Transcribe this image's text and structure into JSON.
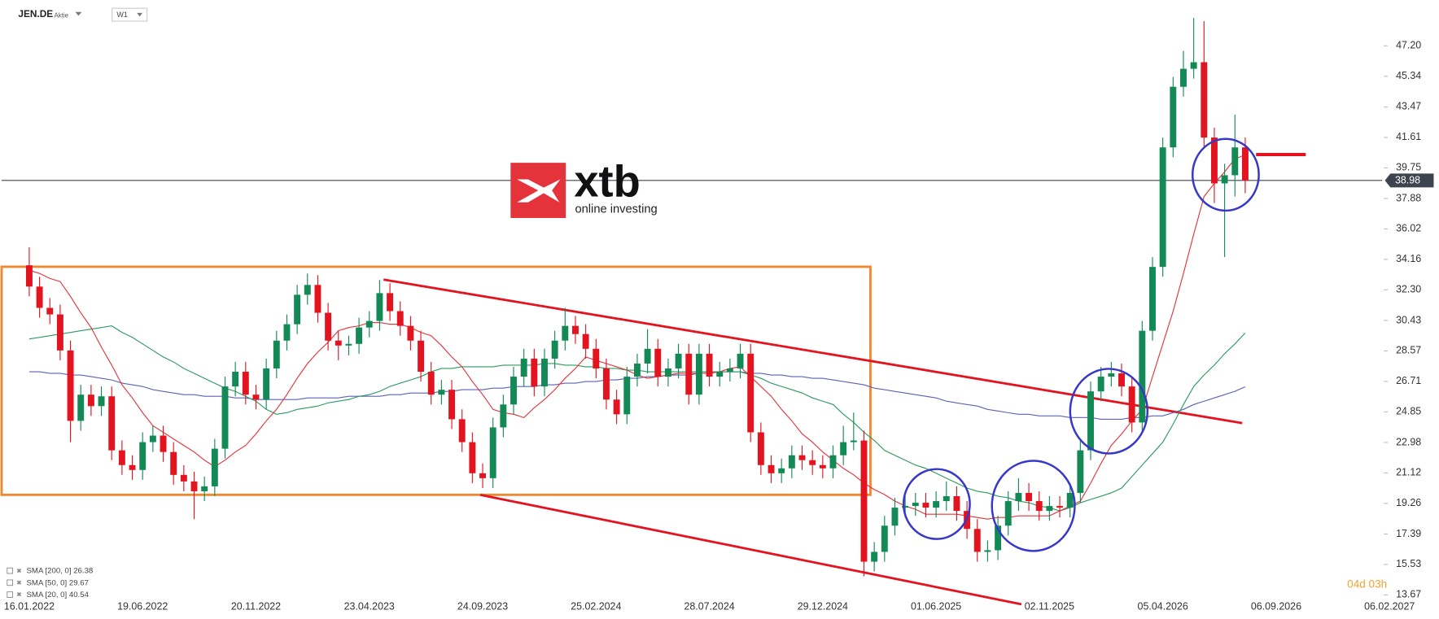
{
  "header": {
    "symbol": "JEN.DE",
    "kind": "Aktie",
    "timeframe": "W1"
  },
  "logo": {
    "brand": "xtb",
    "tagline": "online investing"
  },
  "countdown": "04d 03h",
  "chart_data": {
    "type": "candlestick",
    "categories": [
      "16.01.2022",
      null,
      null,
      null,
      null,
      null,
      null,
      null,
      null,
      null,
      null,
      "19.06.2022",
      null,
      null,
      null,
      null,
      null,
      null,
      null,
      null,
      null,
      null,
      "20.11.2022",
      null,
      null,
      null,
      null,
      null,
      null,
      null,
      null,
      null,
      null,
      "23.04.2023",
      null,
      null,
      null,
      null,
      null,
      null,
      null,
      null,
      null,
      null,
      "24.09.2023",
      null,
      null,
      null,
      null,
      null,
      null,
      null,
      null,
      null,
      null,
      "25.02.2024",
      null,
      null,
      null,
      null,
      null,
      null,
      null,
      null,
      null,
      null,
      "28.07.2024",
      null,
      null,
      null,
      null,
      null,
      null,
      null,
      null,
      null,
      null,
      "29.12.2024",
      null,
      null,
      null,
      null,
      null,
      null,
      null,
      null,
      null,
      null,
      "01.06.2025",
      null,
      null,
      null,
      null,
      null,
      null,
      null,
      null,
      null,
      null,
      "02.11.2025",
      null,
      null,
      null,
      null,
      null,
      null,
      null,
      null,
      null,
      null,
      "05.04.2026",
      null,
      null,
      null,
      null,
      null,
      null,
      null,
      null,
      null,
      null,
      "06.09.2026",
      null,
      null,
      null,
      null,
      null,
      null,
      null,
      null,
      null,
      null,
      "06.02.2027"
    ],
    "open": [
      33.8,
      32.5,
      31.2,
      30.8,
      28.6,
      24.3,
      25.9,
      25.2,
      25.8,
      22.5,
      21.6,
      21.3,
      23.0,
      23.4,
      22.4,
      21.0,
      20.6,
      20.0,
      20.3,
      22.6,
      26.4,
      27.3,
      25.9,
      25.6,
      27.5,
      29.2,
      30.2,
      32.0,
      32.6,
      30.9,
      29.2,
      28.9,
      29.0,
      30.0,
      30.4,
      32.1,
      31.0,
      30.1,
      29.2,
      27.3,
      25.9,
      26.2,
      24.4,
      23.0,
      21.1,
      20.8,
      23.9,
      25.3,
      27.0,
      28.1,
      26.4,
      28.1,
      29.2,
      30.1,
      29.6,
      28.7,
      27.5,
      25.6,
      24.7,
      27.0,
      27.8,
      28.7,
      27.0,
      27.5,
      28.4,
      25.9,
      28.4,
      27.0,
      27.3,
      27.5,
      28.4,
      23.6,
      21.6,
      21.1,
      21.4,
      22.2,
      21.9,
      21.6,
      21.4,
      22.2,
      23.0,
      23.1,
      15.7,
      16.3,
      17.9,
      19.0,
      19.1,
      19.3,
      19.0,
      19.4,
      19.7,
      18.8,
      17.7,
      16.3,
      16.4,
      17.9,
      19.4,
      19.9,
      19.4,
      18.8,
      19.1,
      19.0,
      19.9,
      22.5,
      26.1,
      27.0,
      27.2,
      26.4,
      24.2,
      29.8,
      33.7,
      41.0,
      44.7,
      45.8,
      46.2,
      41.6,
      38.8,
      39.3,
      41.0,
      null,
      null,
      null,
      null,
      null,
      null,
      null,
      null,
      null,
      null,
      null,
      null,
      null,
      null
    ],
    "high": [
      34.9,
      33.1,
      31.8,
      31.4,
      29.2,
      26.5,
      26.5,
      26.4,
      26.4,
      23.1,
      22.2,
      23.6,
      24.0,
      24.0,
      23.0,
      21.6,
      21.2,
      20.9,
      23.2,
      27.0,
      27.9,
      27.9,
      26.5,
      28.1,
      29.8,
      30.8,
      32.6,
      33.3,
      33.2,
      31.5,
      29.8,
      29.5,
      30.6,
      31.0,
      32.9,
      32.7,
      31.6,
      30.7,
      29.8,
      27.9,
      26.8,
      26.8,
      25.0,
      23.6,
      21.7,
      24.5,
      25.9,
      27.6,
      28.7,
      28.7,
      28.7,
      29.8,
      31.2,
      30.7,
      30.2,
      29.3,
      28.1,
      26.2,
      27.6,
      28.4,
      29.9,
      29.3,
      28.1,
      29.0,
      29.0,
      29.0,
      29.0,
      27.9,
      28.1,
      29.0,
      29.0,
      24.2,
      22.2,
      22.0,
      22.8,
      22.8,
      22.5,
      22.2,
      22.8,
      24.0,
      24.8,
      23.7,
      16.9,
      18.5,
      19.6,
      19.7,
      19.9,
      19.9,
      20.0,
      20.6,
      20.3,
      19.4,
      18.3,
      17.0,
      18.5,
      20.0,
      20.8,
      20.5,
      20.0,
      19.7,
      19.7,
      20.5,
      23.1,
      26.7,
      27.6,
      27.9,
      27.8,
      27.0,
      30.4,
      34.3,
      41.6,
      45.3,
      46.9,
      48.9,
      48.7,
      42.2,
      40.0,
      43.0,
      41.6,
      null,
      null,
      null,
      null,
      null,
      null,
      null,
      null,
      null,
      null,
      null,
      null,
      null,
      null
    ],
    "low": [
      31.9,
      30.6,
      30.2,
      28.0,
      23.0,
      23.7,
      24.6,
      24.6,
      21.9,
      21.0,
      20.7,
      20.7,
      22.4,
      21.8,
      20.4,
      20.0,
      18.3,
      19.4,
      19.7,
      22.0,
      25.8,
      25.3,
      25.0,
      25.0,
      26.9,
      28.6,
      29.6,
      31.4,
      30.3,
      28.6,
      28.0,
      28.3,
      28.4,
      29.4,
      29.8,
      30.4,
      29.5,
      28.6,
      26.7,
      25.3,
      25.3,
      23.8,
      22.4,
      20.5,
      20.2,
      20.2,
      23.3,
      24.7,
      26.4,
      25.8,
      25.8,
      27.5,
      28.6,
      29.0,
      28.1,
      26.9,
      25.0,
      24.1,
      24.1,
      26.4,
      27.2,
      26.4,
      26.4,
      26.9,
      25.3,
      25.3,
      26.4,
      26.4,
      26.7,
      26.9,
      23.0,
      21.0,
      20.5,
      20.5,
      20.8,
      21.3,
      21.0,
      20.8,
      20.8,
      21.6,
      22.5,
      14.8,
      15.1,
      15.7,
      17.3,
      18.4,
      18.5,
      18.4,
      18.4,
      18.8,
      18.2,
      17.1,
      15.7,
      15.7,
      15.8,
      17.3,
      18.8,
      18.8,
      18.2,
      18.2,
      18.4,
      18.4,
      19.3,
      21.9,
      25.5,
      26.4,
      25.8,
      23.6,
      23.6,
      29.2,
      33.1,
      40.4,
      44.1,
      45.2,
      41.0,
      37.6,
      34.3,
      38.0,
      38.2,
      null,
      null,
      null,
      null,
      null,
      null,
      null,
      null,
      null,
      null,
      null,
      null,
      null,
      null
    ],
    "close": [
      32.5,
      31.2,
      30.8,
      28.6,
      24.3,
      25.9,
      25.2,
      25.8,
      22.5,
      21.6,
      21.3,
      23.0,
      23.4,
      22.4,
      21.0,
      20.6,
      20.0,
      20.3,
      22.6,
      26.4,
      27.3,
      25.9,
      25.6,
      27.5,
      29.2,
      30.2,
      32.0,
      32.6,
      30.9,
      29.2,
      28.9,
      29.0,
      30.0,
      30.4,
      32.1,
      31.0,
      30.1,
      29.2,
      27.3,
      25.9,
      26.2,
      24.4,
      23.0,
      21.1,
      20.8,
      23.9,
      25.3,
      27.0,
      28.1,
      26.4,
      28.1,
      29.2,
      30.1,
      29.6,
      28.7,
      27.5,
      25.6,
      24.7,
      27.0,
      27.8,
      28.7,
      27.0,
      27.5,
      28.4,
      25.9,
      28.4,
      27.0,
      27.3,
      27.5,
      28.4,
      23.6,
      21.6,
      21.1,
      21.4,
      22.2,
      21.9,
      21.6,
      21.4,
      22.2,
      23.0,
      23.1,
      15.7,
      16.3,
      17.9,
      19.0,
      19.1,
      19.3,
      19.0,
      19.4,
      19.7,
      18.8,
      17.7,
      16.3,
      16.4,
      17.9,
      19.4,
      19.9,
      19.4,
      18.8,
      19.1,
      19.0,
      19.9,
      22.5,
      26.1,
      27.0,
      27.2,
      26.4,
      24.2,
      29.8,
      33.7,
      41.0,
      44.7,
      45.8,
      46.2,
      41.6,
      38.8,
      39.3,
      41.0,
      38.98,
      null,
      null,
      null,
      null,
      null,
      null,
      null,
      null,
      null,
      null,
      null,
      null,
      null,
      null
    ],
    "up_color": "#138a56",
    "down_color": "#e3141f",
    "series": [
      {
        "name": "SMA [200, 0] 26.38",
        "color": "#5b62b4",
        "values": [
          27.3,
          27.3,
          27.2,
          27.2,
          27.1,
          27.1,
          27.0,
          26.9,
          26.8,
          26.6,
          26.5,
          26.4,
          26.2,
          26.1,
          26.0,
          25.9,
          25.9,
          25.8,
          25.8,
          25.8,
          25.7,
          25.7,
          25.6,
          25.6,
          25.6,
          25.6,
          25.6,
          25.7,
          25.7,
          25.7,
          25.7,
          25.8,
          25.8,
          25.8,
          25.8,
          25.9,
          25.9,
          26.0,
          26.0,
          26.0,
          26.1,
          26.1,
          26.2,
          26.2,
          26.2,
          26.3,
          26.3,
          26.4,
          26.4,
          26.4,
          26.5,
          26.5,
          26.6,
          26.6,
          26.7,
          26.7,
          26.8,
          26.8,
          26.9,
          26.9,
          27.0,
          27.0,
          27.1,
          27.1,
          27.1,
          27.2,
          27.2,
          27.3,
          27.3,
          27.3,
          27.2,
          27.2,
          27.1,
          27.1,
          27.0,
          27.0,
          26.9,
          26.9,
          26.8,
          26.7,
          26.6,
          26.5,
          26.3,
          26.2,
          26.1,
          26.0,
          25.9,
          25.8,
          25.7,
          25.5,
          25.4,
          25.3,
          25.2,
          25.0,
          24.9,
          24.8,
          24.7,
          24.7,
          24.6,
          24.6,
          24.6,
          24.5,
          24.5,
          24.5,
          24.4,
          24.4,
          24.4,
          24.5,
          24.5,
          24.6,
          24.6,
          24.8,
          25.0,
          25.3,
          25.5,
          25.7,
          25.9,
          26.1,
          26.38,
          null,
          null,
          null,
          null,
          null,
          null,
          null,
          null,
          null,
          null,
          null,
          null,
          null,
          null
        ]
      },
      {
        "name": "SMA [50, 0] 29.67",
        "color": "#2e9a62",
        "values": [
          29.3,
          29.4,
          29.5,
          29.6,
          29.7,
          29.8,
          29.9,
          30.0,
          30.1,
          29.7,
          29.4,
          29.0,
          28.6,
          28.2,
          27.9,
          27.5,
          27.2,
          26.9,
          26.6,
          26.3,
          26.1,
          25.8,
          25.5,
          25.0,
          24.7,
          24.8,
          25.0,
          25.1,
          25.2,
          25.4,
          25.5,
          25.6,
          25.8,
          25.9,
          26.1,
          26.4,
          26.6,
          26.8,
          27.0,
          27.3,
          27.5,
          27.5,
          27.6,
          27.6,
          27.6,
          27.6,
          27.7,
          27.7,
          27.7,
          27.7,
          27.8,
          27.8,
          27.7,
          27.7,
          27.6,
          27.6,
          27.5,
          27.5,
          27.4,
          27.4,
          27.3,
          27.3,
          27.3,
          27.3,
          27.3,
          27.3,
          27.3,
          27.3,
          27.3,
          27.3,
          27.1,
          26.9,
          26.6,
          26.4,
          26.2,
          26.0,
          25.7,
          25.5,
          25.3,
          24.7,
          24.2,
          23.6,
          23.1,
          22.5,
          22.2,
          21.9,
          21.6,
          21.4,
          21.1,
          20.8,
          20.5,
          20.2,
          20.0,
          19.9,
          19.7,
          19.6,
          19.4,
          19.3,
          19.1,
          19.0,
          18.8,
          19.0,
          19.3,
          19.5,
          19.7,
          19.9,
          20.2,
          20.9,
          21.6,
          22.3,
          23.0,
          24.1,
          25.3,
          26.4,
          27.1,
          27.7,
          28.4,
          29.0,
          29.67,
          null,
          null,
          null,
          null,
          null,
          null,
          null,
          null,
          null,
          null,
          null,
          null,
          null,
          null
        ]
      },
      {
        "name": "SMA [20, 0] 40.54",
        "color": "#e5333b",
        "values": [
          33.5,
          33.3,
          33.0,
          32.8,
          31.9,
          30.9,
          30.0,
          28.8,
          27.7,
          26.5,
          25.7,
          24.8,
          24.0,
          23.6,
          23.2,
          22.8,
          22.4,
          21.9,
          21.5,
          21.9,
          22.4,
          22.8,
          23.5,
          24.3,
          25.0,
          25.9,
          26.9,
          27.8,
          28.5,
          29.1,
          29.8,
          30.0,
          30.1,
          30.3,
          30.3,
          30.2,
          30.2,
          30.0,
          29.7,
          29.5,
          28.9,
          28.2,
          27.6,
          26.7,
          25.9,
          25.0,
          24.8,
          24.7,
          24.5,
          25.1,
          25.6,
          26.2,
          26.9,
          27.5,
          28.2,
          28.0,
          27.8,
          27.6,
          27.4,
          27.1,
          26.9,
          27.0,
          27.1,
          27.2,
          27.2,
          27.2,
          27.2,
          27.3,
          27.5,
          27.6,
          27.0,
          26.4,
          25.8,
          25.0,
          24.3,
          23.5,
          23.0,
          22.4,
          21.9,
          21.4,
          21.0,
          20.5,
          20.1,
          19.8,
          19.4,
          19.1,
          18.9,
          18.6,
          18.6,
          18.6,
          18.6,
          18.5,
          18.4,
          18.3,
          18.4,
          18.4,
          18.5,
          18.5,
          18.5,
          18.5,
          18.8,
          19.1,
          19.4,
          20.5,
          21.7,
          22.8,
          23.5,
          24.3,
          25.0,
          27.0,
          29.0,
          31.0,
          33.3,
          35.7,
          38.0,
          38.8,
          39.5,
          40.3,
          40.54,
          null,
          null,
          null,
          null,
          null,
          null,
          null,
          null,
          null,
          null,
          null,
          null,
          null,
          null
        ]
      }
    ],
    "ylim": [
      12.2,
      50.0
    ],
    "yticks": [
      13.67,
      15.53,
      17.39,
      19.26,
      21.12,
      22.98,
      24.85,
      26.71,
      28.57,
      30.43,
      {
        "value": 32.3,
        "label": "32.30"
      },
      34.16,
      36.02,
      37.88,
      39.75,
      41.61,
      43.47,
      45.34,
      {
        "value": 47.2,
        "label": "47.20"
      }
    ],
    "last_price": 38.98,
    "grid": false
  }
}
